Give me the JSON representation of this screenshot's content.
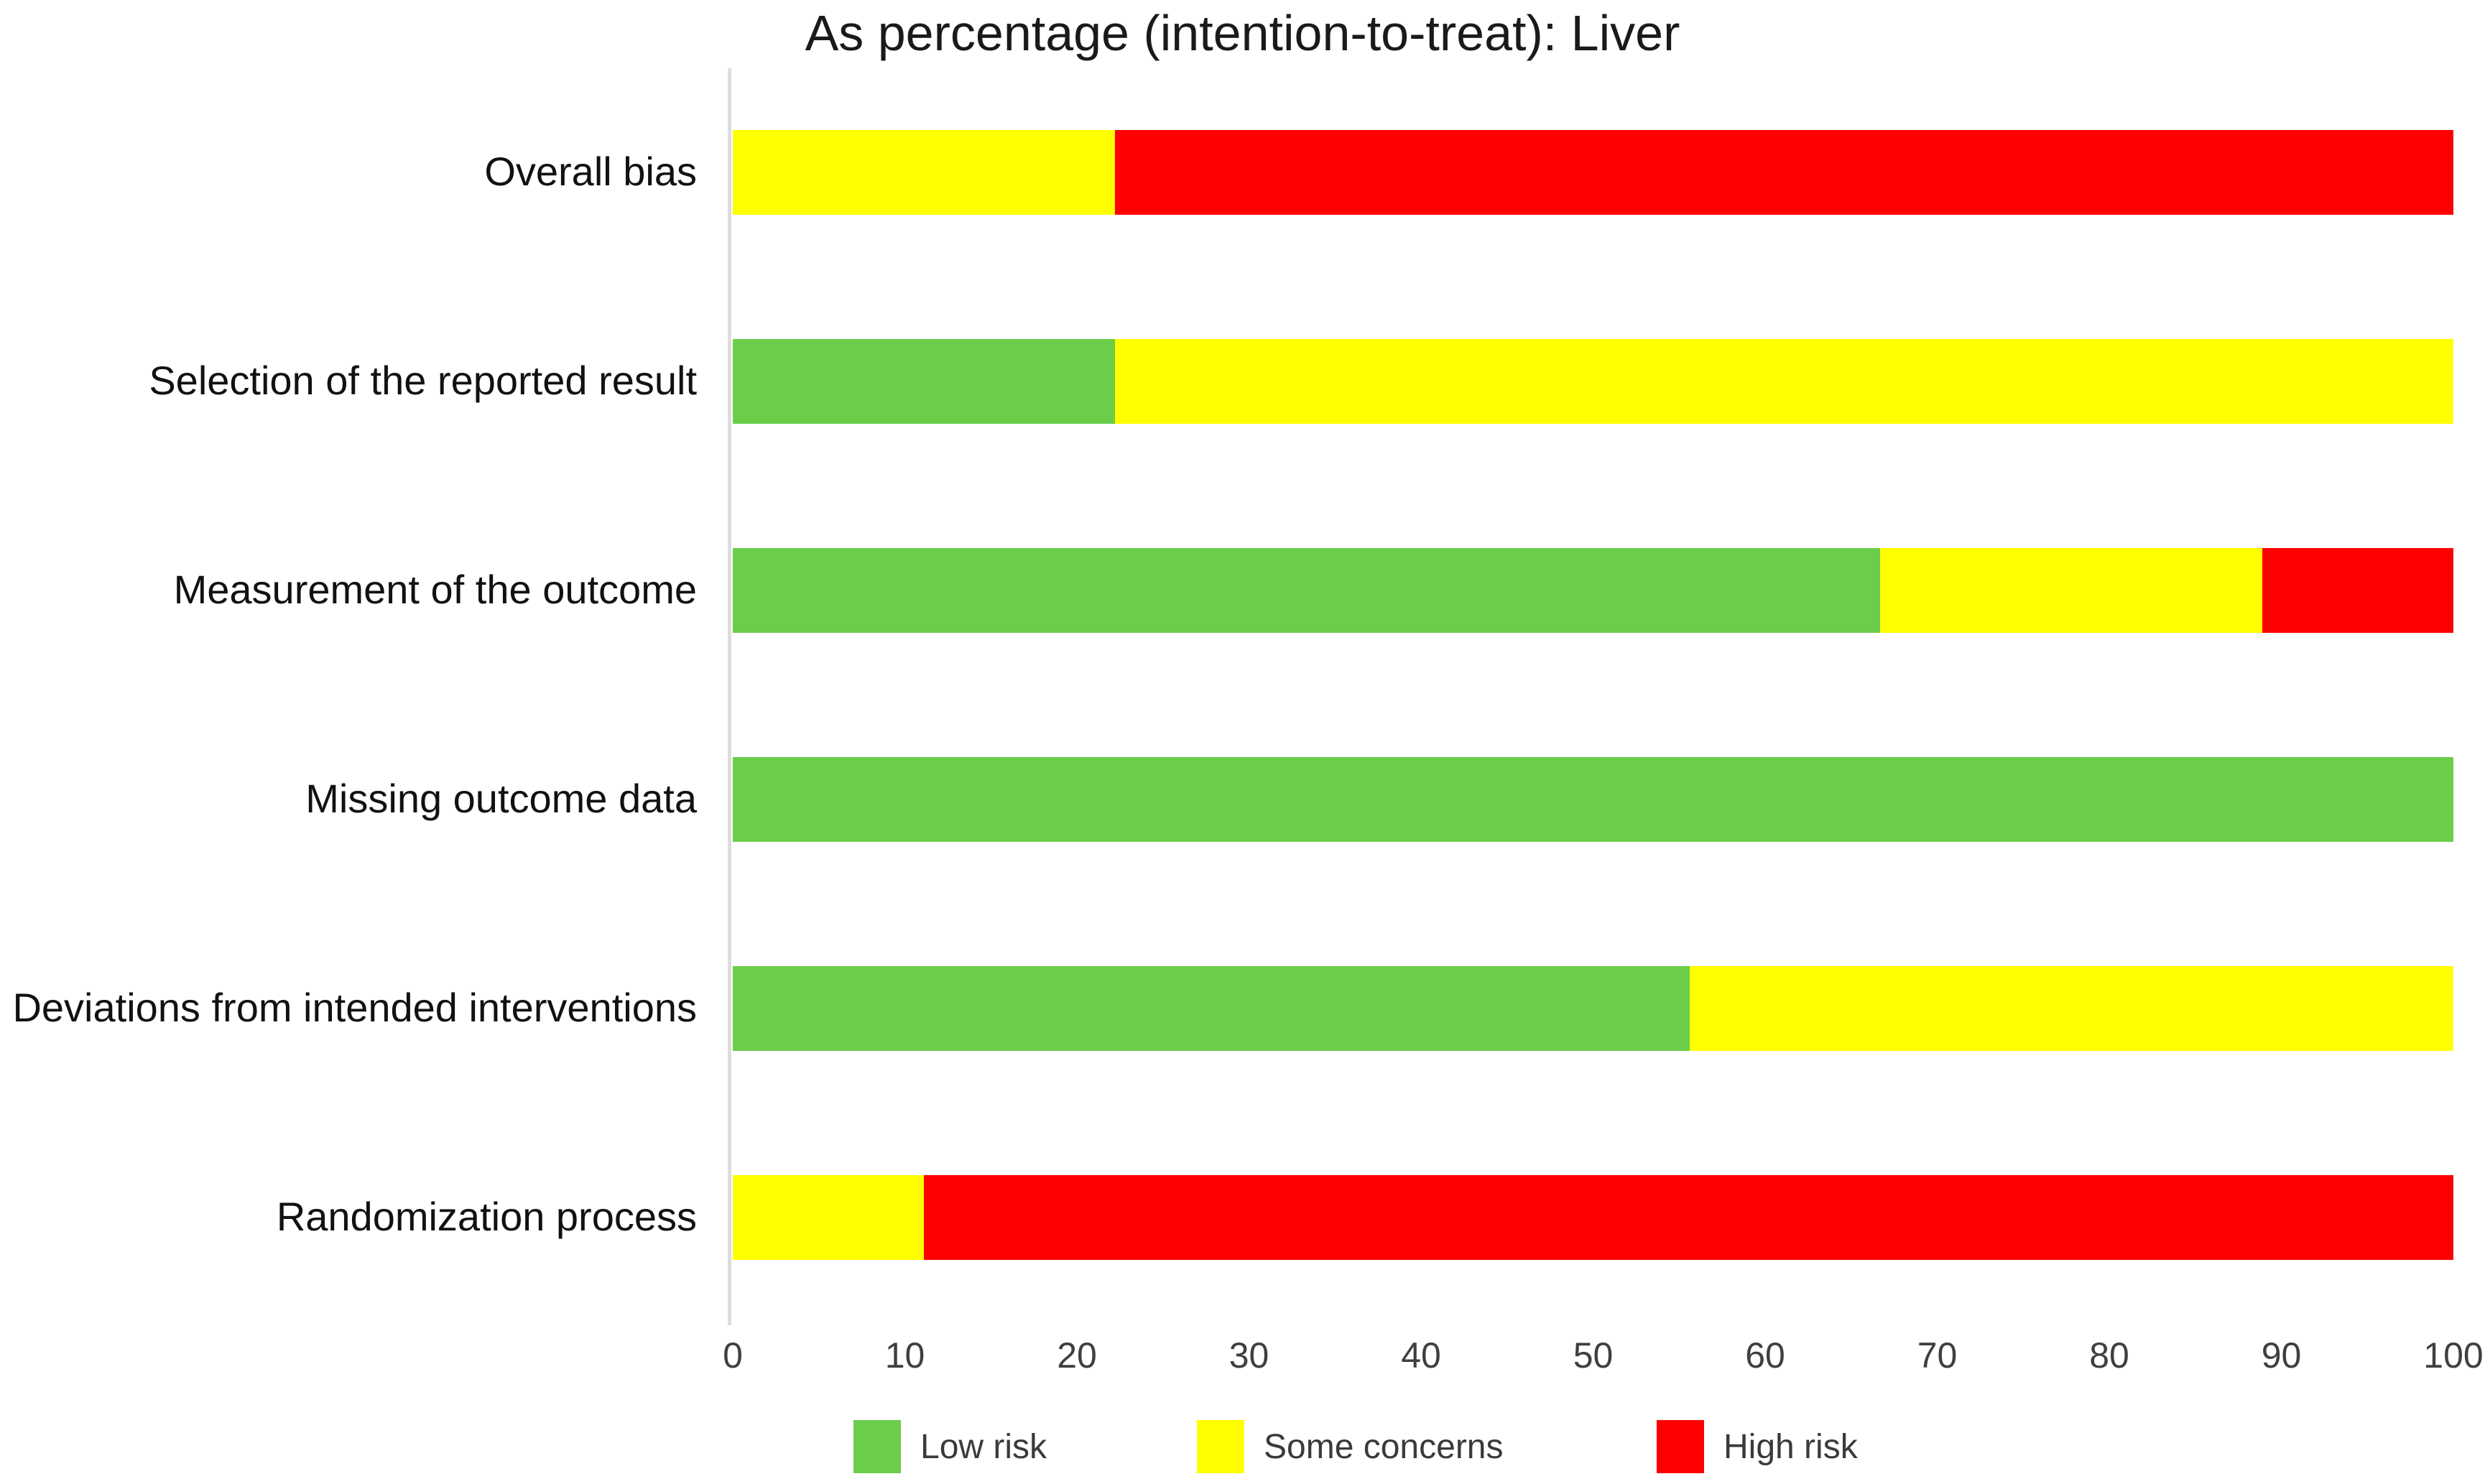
{
  "title": "As percentage (intention-to-treat): Liver",
  "colors": {
    "low": "#6BCD4A",
    "some": "#FFFF00",
    "high": "#FF0000"
  },
  "chart_data": {
    "type": "bar",
    "orientation": "horizontal",
    "stacked": true,
    "title": "As percentage (intention-to-treat): Liver",
    "categories": [
      "Overall bias",
      "Selection of the reported result",
      "Measurement of the outcome",
      "Missing outcome data",
      "Deviations from intended interventions",
      "Randomization process"
    ],
    "series": [
      {
        "name": "Low risk",
        "color_key": "low",
        "values": [
          0,
          22.2,
          66.7,
          100,
          55.6,
          0
        ]
      },
      {
        "name": "Some concerns",
        "color_key": "some",
        "values": [
          22.2,
          77.8,
          22.2,
          0,
          44.4,
          11.1
        ]
      },
      {
        "name": "High risk",
        "color_key": "high",
        "values": [
          77.8,
          0,
          11.1,
          0,
          0,
          88.9
        ]
      }
    ],
    "x_axis": {
      "min": 0,
      "max": 100,
      "ticks": [
        0,
        10,
        20,
        30,
        40,
        50,
        60,
        70,
        80,
        90,
        100
      ]
    },
    "grid": false,
    "legend_position": "bottom",
    "legend": [
      {
        "label": "Low risk",
        "color_key": "low"
      },
      {
        "label": "Some concerns",
        "color_key": "some"
      },
      {
        "label": "High risk",
        "color_key": "high"
      }
    ]
  }
}
